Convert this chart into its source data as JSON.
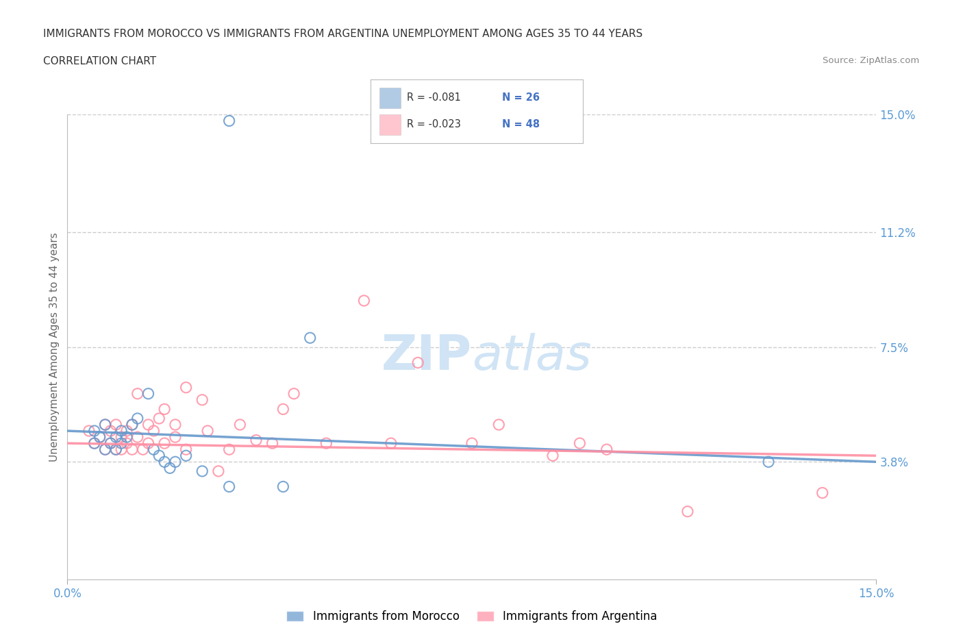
{
  "title_line1": "IMMIGRANTS FROM MOROCCO VS IMMIGRANTS FROM ARGENTINA UNEMPLOYMENT AMONG AGES 35 TO 44 YEARS",
  "title_line2": "CORRELATION CHART",
  "source_text": "Source: ZipAtlas.com",
  "ylabel": "Unemployment Among Ages 35 to 44 years",
  "xmin": 0.0,
  "xmax": 0.15,
  "ymin": 0.0,
  "ymax": 0.15,
  "yticks": [
    0.0,
    0.038,
    0.075,
    0.112,
    0.15
  ],
  "ytick_labels": [
    "",
    "3.8%",
    "7.5%",
    "11.2%",
    "15.0%"
  ],
  "grid_color": "#cccccc",
  "background_color": "#ffffff",
  "morocco_color": "#6699cc",
  "argentina_color": "#ff8fa3",
  "text_color": "#4472c4",
  "morocco_R": -0.081,
  "morocco_N": 26,
  "argentina_R": -0.023,
  "argentina_N": 48,
  "morocco_line_start_y": 0.048,
  "morocco_line_end_y": 0.038,
  "argentina_line_start_y": 0.044,
  "argentina_line_end_y": 0.04,
  "morocco_scatter_x": [
    0.005,
    0.005,
    0.006,
    0.007,
    0.007,
    0.008,
    0.009,
    0.009,
    0.01,
    0.01,
    0.011,
    0.012,
    0.013,
    0.015,
    0.016,
    0.017,
    0.018,
    0.019,
    0.02,
    0.022,
    0.025,
    0.03,
    0.04,
    0.045,
    0.13,
    0.03
  ],
  "morocco_scatter_y": [
    0.048,
    0.044,
    0.046,
    0.042,
    0.05,
    0.044,
    0.042,
    0.046,
    0.044,
    0.048,
    0.046,
    0.05,
    0.052,
    0.06,
    0.042,
    0.04,
    0.038,
    0.036,
    0.038,
    0.04,
    0.035,
    0.03,
    0.03,
    0.078,
    0.038,
    0.148
  ],
  "argentina_scatter_x": [
    0.004,
    0.005,
    0.006,
    0.007,
    0.007,
    0.008,
    0.008,
    0.009,
    0.009,
    0.01,
    0.01,
    0.011,
    0.011,
    0.012,
    0.012,
    0.013,
    0.013,
    0.014,
    0.015,
    0.015,
    0.016,
    0.017,
    0.018,
    0.018,
    0.02,
    0.02,
    0.022,
    0.022,
    0.025,
    0.026,
    0.028,
    0.03,
    0.032,
    0.035,
    0.038,
    0.04,
    0.042,
    0.048,
    0.055,
    0.06,
    0.065,
    0.075,
    0.08,
    0.09,
    0.095,
    0.1,
    0.115,
    0.14
  ],
  "argentina_scatter_y": [
    0.048,
    0.044,
    0.046,
    0.042,
    0.05,
    0.044,
    0.048,
    0.042,
    0.05,
    0.046,
    0.042,
    0.048,
    0.044,
    0.05,
    0.042,
    0.046,
    0.06,
    0.042,
    0.05,
    0.044,
    0.048,
    0.052,
    0.044,
    0.055,
    0.046,
    0.05,
    0.042,
    0.062,
    0.058,
    0.048,
    0.035,
    0.042,
    0.05,
    0.045,
    0.044,
    0.055,
    0.06,
    0.044,
    0.09,
    0.044,
    0.07,
    0.044,
    0.05,
    0.04,
    0.044,
    0.042,
    0.022,
    0.028
  ],
  "watermark_color": "#d0e4f5",
  "tick_label_color": "#5b9bd5"
}
